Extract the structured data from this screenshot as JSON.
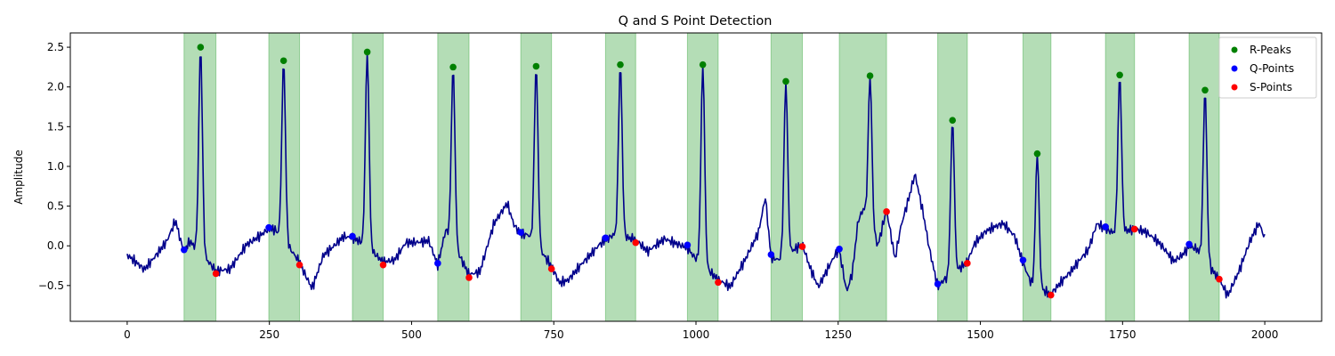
{
  "chart_data": {
    "type": "line",
    "title": "Q and S Point Detection",
    "xlabel": "",
    "ylabel": "Amplitude",
    "xlim": [
      -100,
      2100
    ],
    "ylim": [
      -0.95,
      2.68
    ],
    "xticks": [
      0,
      250,
      500,
      750,
      1000,
      1250,
      1500,
      1750,
      2000
    ],
    "yticks": [
      -0.5,
      0.0,
      0.5,
      1.0,
      1.5,
      2.0,
      2.5
    ],
    "ytick_labels": [
      "−0.5",
      "0.0",
      "0.5",
      "1.0",
      "1.5",
      "2.0",
      "2.5"
    ],
    "grid": false,
    "legend_position": "top-right",
    "colors": {
      "signal": "#00008b",
      "r_peaks": "#008000",
      "q_points": "#0000ff",
      "s_points": "#ff0000",
      "region": "#4caf50"
    },
    "highlight_regions": [
      [
        100,
        156
      ],
      [
        249,
        303
      ],
      [
        396,
        450
      ],
      [
        546,
        601
      ],
      [
        692,
        746
      ],
      [
        841,
        894
      ],
      [
        985,
        1039
      ],
      [
        1132,
        1187
      ],
      [
        1252,
        1335
      ],
      [
        1425,
        1477
      ],
      [
        1575,
        1624
      ],
      [
        1720,
        1771
      ],
      [
        1867,
        1920
      ]
    ],
    "series": [
      {
        "name": "R-Peaks",
        "points": [
          [
            129,
            2.5
          ],
          [
            275,
            2.33
          ],
          [
            422,
            2.44
          ],
          [
            573,
            2.25
          ],
          [
            719,
            2.26
          ],
          [
            867,
            2.28
          ],
          [
            1012,
            2.28
          ],
          [
            1158,
            2.07
          ],
          [
            1306,
            2.14
          ],
          [
            1451,
            1.58
          ],
          [
            1600,
            1.16
          ],
          [
            1745,
            2.15
          ],
          [
            1895,
            1.96
          ]
        ]
      },
      {
        "name": "Q-Points",
        "points": [
          [
            100,
            -0.05
          ],
          [
            249,
            0.23
          ],
          [
            396,
            0.12
          ],
          [
            546,
            -0.22
          ],
          [
            692,
            0.17
          ],
          [
            841,
            0.1
          ],
          [
            985,
            0.01
          ],
          [
            1132,
            -0.11
          ],
          [
            1252,
            -0.04
          ],
          [
            1425,
            -0.48
          ],
          [
            1575,
            -0.18
          ],
          [
            1720,
            0.24
          ],
          [
            1867,
            0.02
          ]
        ]
      },
      {
        "name": "S-Points",
        "points": [
          [
            156,
            -0.35
          ],
          [
            303,
            -0.24
          ],
          [
            450,
            -0.24
          ],
          [
            601,
            -0.4
          ],
          [
            746,
            -0.29
          ],
          [
            894,
            0.04
          ],
          [
            1039,
            -0.46
          ],
          [
            1187,
            -0.01
          ],
          [
            1335,
            0.43
          ],
          [
            1477,
            -0.22
          ],
          [
            1624,
            -0.62
          ],
          [
            1771,
            0.21
          ],
          [
            1920,
            -0.42
          ]
        ]
      }
    ],
    "signal_shape": {
      "baseline": [
        [
          0,
          -0.15
        ],
        [
          30,
          -0.3
        ],
        [
          70,
          0.1
        ],
        [
          85,
          0.35
        ],
        [
          95,
          0.05
        ],
        [
          100,
          -0.05
        ],
        [
          110,
          0.05
        ],
        [
          156,
          -0.35
        ],
        [
          180,
          -0.3
        ],
        [
          210,
          0.05
        ],
        [
          249,
          0.23
        ],
        [
          260,
          0.2
        ],
        [
          303,
          -0.24
        ],
        [
          310,
          -0.35
        ],
        [
          325,
          -0.55
        ],
        [
          345,
          -0.1
        ],
        [
          380,
          0.15
        ],
        [
          396,
          0.12
        ],
        [
          410,
          0.05
        ],
        [
          450,
          -0.24
        ],
        [
          470,
          -0.2
        ],
        [
          490,
          0.05
        ],
        [
          530,
          0.1
        ],
        [
          546,
          -0.22
        ],
        [
          560,
          0.2
        ],
        [
          601,
          -0.4
        ],
        [
          620,
          -0.35
        ],
        [
          645,
          0.3
        ],
        [
          668,
          0.57
        ],
        [
          680,
          0.3
        ],
        [
          692,
          0.17
        ],
        [
          705,
          0.15
        ],
        [
          746,
          -0.29
        ],
        [
          760,
          -0.5
        ],
        [
          775,
          -0.45
        ],
        [
          800,
          -0.2
        ],
        [
          830,
          0.05
        ],
        [
          841,
          0.1
        ],
        [
          855,
          0.15
        ],
        [
          894,
          0.04
        ],
        [
          915,
          -0.1
        ],
        [
          945,
          0.1
        ],
        [
          970,
          0.05
        ],
        [
          985,
          0.01
        ],
        [
          995,
          -0.1
        ],
        [
          1039,
          -0.46
        ],
        [
          1060,
          -0.55
        ],
        [
          1085,
          -0.2
        ],
        [
          1110,
          0.2
        ],
        [
          1122,
          0.65
        ],
        [
          1132,
          -0.11
        ],
        [
          1145,
          -0.15
        ],
        [
          1187,
          -0.01
        ],
        [
          1200,
          -0.3
        ],
        [
          1215,
          -0.55
        ],
        [
          1245,
          -0.1
        ],
        [
          1252,
          -0.04
        ],
        [
          1265,
          -0.55
        ],
        [
          1275,
          -0.3
        ],
        [
          1285,
          0.35
        ],
        [
          1295,
          0.5
        ],
        [
          1320,
          0.0
        ],
        [
          1335,
          0.43
        ],
        [
          1350,
          -0.2
        ],
        [
          1360,
          0.2
        ],
        [
          1375,
          0.6
        ],
        [
          1385,
          0.9
        ],
        [
          1400,
          0.4
        ],
        [
          1410,
          0.0
        ],
        [
          1425,
          -0.48
        ],
        [
          1435,
          -0.4
        ],
        [
          1477,
          -0.22
        ],
        [
          1490,
          0.0
        ],
        [
          1510,
          0.15
        ],
        [
          1540,
          0.28
        ],
        [
          1560,
          0.15
        ],
        [
          1575,
          -0.18
        ],
        [
          1590,
          -0.45
        ],
        [
          1624,
          -0.62
        ],
        [
          1640,
          -0.5
        ],
        [
          1660,
          -0.35
        ],
        [
          1690,
          -0.05
        ],
        [
          1705,
          0.3
        ],
        [
          1720,
          0.24
        ],
        [
          1735,
          0.2
        ],
        [
          1771,
          0.21
        ],
        [
          1790,
          0.15
        ],
        [
          1815,
          0.0
        ],
        [
          1840,
          -0.2
        ],
        [
          1855,
          -0.1
        ],
        [
          1867,
          0.02
        ],
        [
          1880,
          0.0
        ],
        [
          1920,
          -0.42
        ],
        [
          1935,
          -0.65
        ],
        [
          1955,
          -0.35
        ],
        [
          1975,
          0.05
        ],
        [
          1990,
          0.28
        ],
        [
          2000,
          0.1
        ]
      ]
    }
  }
}
